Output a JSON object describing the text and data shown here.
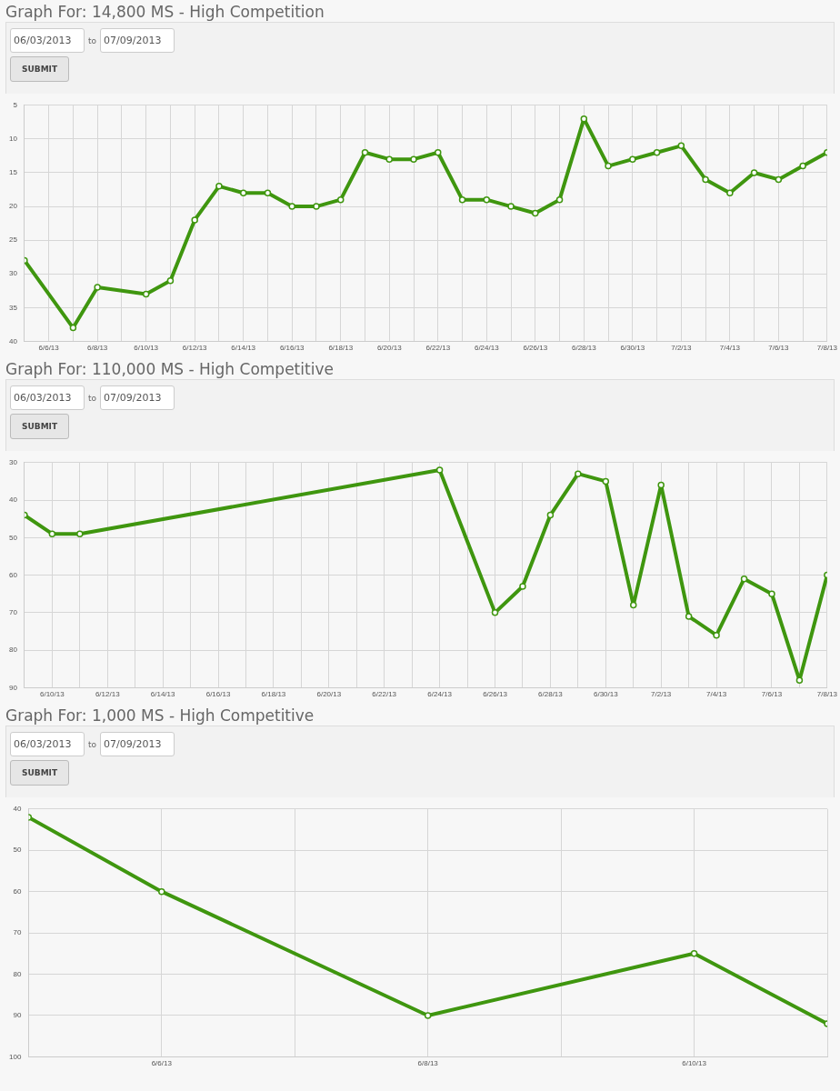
{
  "chart_data": [
    {
      "type": "line",
      "title": "Graph For: 14,800 MS - High Competition",
      "annotations": [
        "06/03/2013",
        "to",
        "07/09/2013",
        "SUBMIT"
      ],
      "x": [
        "2013-06-05",
        "2013-06-07",
        "2013-06-08",
        "2013-06-10",
        "2013-06-11",
        "2013-06-12",
        "2013-06-13",
        "2013-06-14",
        "2013-06-15",
        "2013-06-16",
        "2013-06-17",
        "2013-06-18",
        "2013-06-19",
        "2013-06-20",
        "2013-06-21",
        "2013-06-22",
        "2013-06-23",
        "2013-06-24",
        "2013-06-25",
        "2013-06-26",
        "2013-06-27",
        "2013-06-28",
        "2013-06-29",
        "2013-06-30",
        "2013-07-01",
        "2013-07-02",
        "2013-07-03",
        "2013-07-04",
        "2013-07-05",
        "2013-07-06",
        "2013-07-07",
        "2013-07-08"
      ],
      "series": [
        {
          "color": "#3f960f",
          "values": [
            28,
            38,
            32,
            33,
            31,
            22,
            17,
            18,
            18,
            20,
            20,
            19,
            12,
            13,
            13,
            12,
            19,
            19,
            20,
            21,
            19,
            7,
            14,
            13,
            12,
            11,
            16,
            18,
            15,
            16,
            14,
            12
          ]
        }
      ],
      "xlim": [
        "2013-06-05",
        "2013-07-08"
      ],
      "xticks": [
        {
          "value": "2013-06-05",
          "label": null
        },
        {
          "value": "2013-06-06",
          "label": "6/6/13"
        },
        {
          "value": "2013-06-07",
          "label": null
        },
        {
          "value": "2013-06-08",
          "label": "6/8/13"
        },
        {
          "value": "2013-06-09",
          "label": null
        },
        {
          "value": "2013-06-10",
          "label": "6/10/13"
        },
        {
          "value": "2013-06-11",
          "label": null
        },
        {
          "value": "2013-06-12",
          "label": "6/12/13"
        },
        {
          "value": "2013-06-13",
          "label": null
        },
        {
          "value": "2013-06-14",
          "label": "6/14/13"
        },
        {
          "value": "2013-06-15",
          "label": null
        },
        {
          "value": "2013-06-16",
          "label": "6/16/13"
        },
        {
          "value": "2013-06-17",
          "label": null
        },
        {
          "value": "2013-06-18",
          "label": "6/18/13"
        },
        {
          "value": "2013-06-19",
          "label": null
        },
        {
          "value": "2013-06-20",
          "label": "6/20/13"
        },
        {
          "value": "2013-06-21",
          "label": null
        },
        {
          "value": "2013-06-22",
          "label": "6/22/13"
        },
        {
          "value": "2013-06-23",
          "label": null
        },
        {
          "value": "2013-06-24",
          "label": "6/24/13"
        },
        {
          "value": "2013-06-25",
          "label": null
        },
        {
          "value": "2013-06-26",
          "label": "6/26/13"
        },
        {
          "value": "2013-06-27",
          "label": null
        },
        {
          "value": "2013-06-28",
          "label": "6/28/13"
        },
        {
          "value": "2013-06-29",
          "label": null
        },
        {
          "value": "2013-06-30",
          "label": "6/30/13"
        },
        {
          "value": "2013-07-01",
          "label": null
        },
        {
          "value": "2013-07-02",
          "label": "7/2/13"
        },
        {
          "value": "2013-07-03",
          "label": null
        },
        {
          "value": "2013-07-04",
          "label": "7/4/13"
        },
        {
          "value": "2013-07-05",
          "label": null
        },
        {
          "value": "2013-07-06",
          "label": "7/6/13"
        },
        {
          "value": "2013-07-07",
          "label": null
        },
        {
          "value": "2013-07-08",
          "label": "7/8/13"
        }
      ],
      "ylim": [
        40,
        5
      ],
      "yticks": [
        5,
        10,
        15,
        20,
        25,
        30,
        35,
        40
      ],
      "grid": true,
      "marker": "circle",
      "legend": false
    },
    {
      "type": "line",
      "title": "Graph For: 110,000 MS - High Competitive",
      "annotations": [
        "06/03/2013",
        "to",
        "07/09/2013",
        "SUBMIT"
      ],
      "x": [
        "2013-06-09",
        "2013-06-10",
        "2013-06-11",
        "2013-06-24",
        "2013-06-26",
        "2013-06-27",
        "2013-06-28",
        "2013-06-29",
        "2013-06-30",
        "2013-07-01",
        "2013-07-02",
        "2013-07-03",
        "2013-07-04",
        "2013-07-05",
        "2013-07-06",
        "2013-07-07",
        "2013-07-08"
      ],
      "series": [
        {
          "color": "#3f960f",
          "values": [
            44,
            49,
            49,
            32,
            70,
            63,
            44,
            33,
            35,
            68,
            36,
            71,
            76,
            61,
            65,
            88,
            60
          ]
        }
      ],
      "xlim": [
        "2013-06-09",
        "2013-07-08"
      ],
      "xticks": [
        {
          "value": "2013-06-09",
          "label": null
        },
        {
          "value": "2013-06-10",
          "label": "6/10/13"
        },
        {
          "value": "2013-06-11",
          "label": null
        },
        {
          "value": "2013-06-12",
          "label": "6/12/13"
        },
        {
          "value": "2013-06-13",
          "label": null
        },
        {
          "value": "2013-06-14",
          "label": "6/14/13"
        },
        {
          "value": "2013-06-15",
          "label": null
        },
        {
          "value": "2013-06-16",
          "label": "6/16/13"
        },
        {
          "value": "2013-06-17",
          "label": null
        },
        {
          "value": "2013-06-18",
          "label": "6/18/13"
        },
        {
          "value": "2013-06-19",
          "label": null
        },
        {
          "value": "2013-06-20",
          "label": "6/20/13"
        },
        {
          "value": "2013-06-21",
          "label": null
        },
        {
          "value": "2013-06-22",
          "label": "6/22/13"
        },
        {
          "value": "2013-06-23",
          "label": null
        },
        {
          "value": "2013-06-24",
          "label": "6/24/13"
        },
        {
          "value": "2013-06-25",
          "label": null
        },
        {
          "value": "2013-06-26",
          "label": "6/26/13"
        },
        {
          "value": "2013-06-27",
          "label": null
        },
        {
          "value": "2013-06-28",
          "label": "6/28/13"
        },
        {
          "value": "2013-06-29",
          "label": null
        },
        {
          "value": "2013-06-30",
          "label": "6/30/13"
        },
        {
          "value": "2013-07-01",
          "label": null
        },
        {
          "value": "2013-07-02",
          "label": "7/2/13"
        },
        {
          "value": "2013-07-03",
          "label": null
        },
        {
          "value": "2013-07-04",
          "label": "7/4/13"
        },
        {
          "value": "2013-07-05",
          "label": null
        },
        {
          "value": "2013-07-06",
          "label": "7/6/13"
        },
        {
          "value": "2013-07-07",
          "label": null
        },
        {
          "value": "2013-07-08",
          "label": "7/8/13"
        }
      ],
      "ylim": [
        90,
        30
      ],
      "yticks": [
        30,
        40,
        50,
        60,
        70,
        80,
        90
      ],
      "grid": true,
      "marker": "circle",
      "legend": false
    },
    {
      "type": "line",
      "title": "Graph For: 1,000 MS - High Competitive",
      "annotations": [
        "06/03/2013",
        "to",
        "07/09/2013",
        "SUBMIT"
      ],
      "x": [
        "2013-06-05",
        "2013-06-06",
        "2013-06-08",
        "2013-06-10",
        "2013-06-11"
      ],
      "series": [
        {
          "color": "#3f960f",
          "values": [
            42,
            60,
            90,
            75,
            92
          ]
        }
      ],
      "xlim": [
        "2013-06-05",
        "2013-06-11"
      ],
      "xticks": [
        {
          "value": "2013-06-05",
          "label": null
        },
        {
          "value": "2013-06-06",
          "label": "6/6/13"
        },
        {
          "value": "2013-06-07",
          "label": null
        },
        {
          "value": "2013-06-08",
          "label": "6/8/13"
        },
        {
          "value": "2013-06-09",
          "label": null
        },
        {
          "value": "2013-06-10",
          "label": "6/10/13"
        },
        {
          "value": "2013-06-11",
          "label": null
        }
      ],
      "ylim": [
        100,
        40
      ],
      "yticks": [
        40,
        50,
        60,
        70,
        80,
        90,
        100
      ],
      "grid": true,
      "marker": "circle",
      "legend": false
    }
  ]
}
